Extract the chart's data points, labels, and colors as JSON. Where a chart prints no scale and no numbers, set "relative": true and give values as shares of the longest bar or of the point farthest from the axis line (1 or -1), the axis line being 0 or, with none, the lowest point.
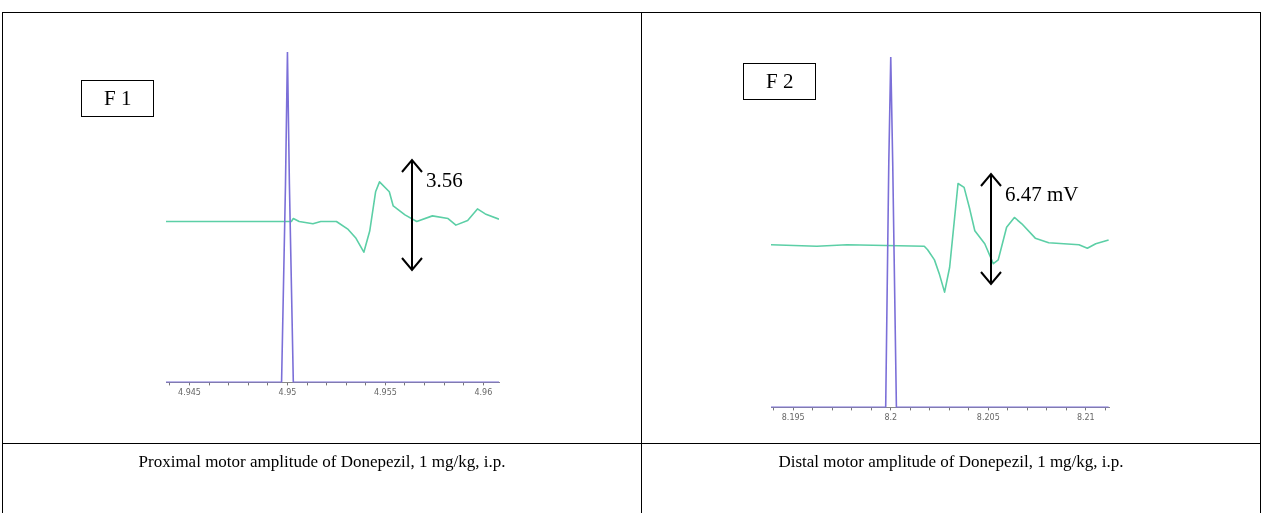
{
  "chart_data": [
    {
      "type": "line",
      "relative": true,
      "grid": false,
      "legend": false,
      "marker": "none",
      "line_style": "solid",
      "tick_labels": "x",
      "xlim": [
        4.9438,
        4.9608
      ],
      "xticks": [
        {
          "value": 4.944,
          "label": null
        },
        4.945,
        {
          "value": 4.946,
          "label": null
        },
        {
          "value": 4.947,
          "label": null
        },
        {
          "value": 4.948,
          "label": null
        },
        {
          "value": 4.949,
          "label": null
        },
        4.95,
        {
          "value": 4.951,
          "label": null
        },
        {
          "value": 4.952,
          "label": null
        },
        {
          "value": 4.953,
          "label": null
        },
        {
          "value": 4.954,
          "label": null
        },
        4.955,
        {
          "value": 4.956,
          "label": null
        },
        {
          "value": 4.957,
          "label": null
        },
        {
          "value": 4.958,
          "label": null
        },
        {
          "value": 4.959,
          "label": null
        },
        4.96
      ],
      "series": [
        {
          "color": "#7b6fd8",
          "x": [
            4.9438,
            4.9497,
            4.9499,
            4.95,
            4.9501,
            4.9503,
            4.9608
          ],
          "values": [
            0,
            0,
            0.6,
            1,
            0.6,
            0,
            0
          ]
        },
        {
          "color": "#5ccfa6",
          "x": [
            4.9438,
            4.9502,
            4.9503,
            4.9506,
            4.9513,
            4.9517,
            4.9525,
            4.9531,
            4.9535,
            4.9539,
            4.9542,
            4.9545,
            4.9547,
            4.9552,
            4.9554,
            4.956,
            4.9566,
            4.9574,
            4.9582,
            4.9586,
            4.9592,
            4.9597,
            4.9601,
            4.9608
          ],
          "values": [
            0.487,
            0.487,
            0.496,
            0.487,
            0.48,
            0.487,
            0.487,
            0.463,
            0.436,
            0.394,
            0.458,
            0.577,
            0.607,
            0.577,
            0.534,
            0.507,
            0.487,
            0.504,
            0.496,
            0.476,
            0.49,
            0.525,
            0.51,
            0.494
          ]
        }
      ],
      "annotations": [
        "F 1",
        "3.56",
        "Proximal motor amplitude of Donepezil, 1 mg/kg, i.p."
      ]
    },
    {
      "type": "line",
      "relative": true,
      "grid": false,
      "legend": false,
      "marker": "none",
      "line_style": "solid",
      "tick_labels": "x",
      "xlim": [
        8.19386,
        8.21119
      ],
      "xticks": [
        {
          "value": 8.194,
          "label": null
        },
        8.195,
        {
          "value": 8.196,
          "label": null
        },
        {
          "value": 8.197,
          "label": null
        },
        {
          "value": 8.198,
          "label": null
        },
        {
          "value": 8.199,
          "label": null
        },
        8.2,
        {
          "value": 8.201,
          "label": null
        },
        {
          "value": 8.202,
          "label": null
        },
        {
          "value": 8.203,
          "label": null
        },
        {
          "value": 8.204,
          "label": null
        },
        8.205,
        {
          "value": 8.206,
          "label": null
        },
        {
          "value": 8.207,
          "label": null
        },
        {
          "value": 8.208,
          "label": null
        },
        {
          "value": 8.209,
          "label": null
        },
        8.21,
        {
          "value": 8.211,
          "label": null
        }
      ],
      "series": [
        {
          "color": "#7b6fd8",
          "x": [
            8.19386,
            8.19974,
            8.1999,
            8.2,
            8.2001,
            8.20029,
            8.21117
          ],
          "values": [
            0,
            0,
            0.7,
            1,
            0.7,
            0,
            0
          ]
        },
        {
          "color": "#5ccfa6",
          "x": [
            8.19386,
            8.19621,
            8.19776,
            8.20172,
            8.20189,
            8.20224,
            8.2025,
            8.20276,
            8.20302,
            8.20345,
            8.20376,
            8.20405,
            8.20431,
            8.20482,
            8.20526,
            8.20551,
            8.20594,
            8.20634,
            8.20672,
            8.20741,
            8.2081,
            8.20965,
            8.21008,
            8.21051,
            8.21117
          ],
          "values": [
            0.464,
            0.46,
            0.464,
            0.46,
            0.45,
            0.421,
            0.379,
            0.329,
            0.4,
            0.639,
            0.628,
            0.566,
            0.504,
            0.467,
            0.41,
            0.421,
            0.514,
            0.542,
            0.524,
            0.483,
            0.47,
            0.464,
            0.454,
            0.467,
            0.478
          ]
        }
      ],
      "annotations": [
        "F 2",
        "6.47 mV",
        "Distal motor amplitude of Donepezil, 1 mg/kg, i.p."
      ]
    }
  ]
}
